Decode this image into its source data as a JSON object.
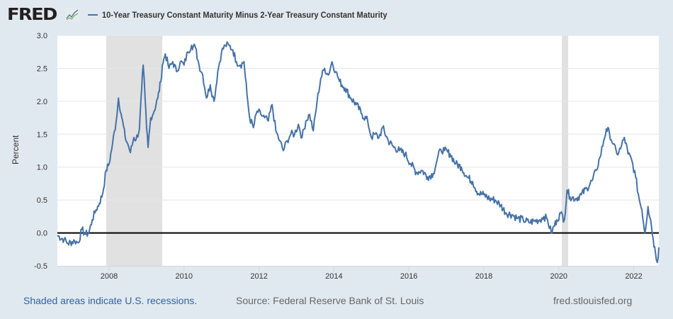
{
  "header": {
    "logo": "FRED",
    "logo_icon": "line-chart-icon",
    "series_title": "10-Year Treasury Constant Maturity Minus 2-Year Treasury Constant Maturity"
  },
  "footer": {
    "recession_note": "Shaded areas indicate U.S. recessions.",
    "source": "Source: Federal Reserve Bank of St. Louis",
    "site": "fred.stlouisfed.org"
  },
  "colors": {
    "background": "#e1e9f0",
    "plot_bg": "#ffffff",
    "series": "#4572a7",
    "recession": "#e1e1e1",
    "zero_line": "#000000",
    "grid": "#e6e6e6"
  },
  "chart_data": {
    "type": "line",
    "title": "10-Year Treasury Constant Maturity Minus 2-Year Treasury Constant Maturity",
    "xlabel": "",
    "ylabel": "Percent",
    "xlim": [
      2006.62,
      2022.67
    ],
    "ylim": [
      -0.5,
      3.0
    ],
    "x_ticks": [
      2008,
      2010,
      2012,
      2014,
      2016,
      2018,
      2020,
      2022
    ],
    "x_tick_labels": [
      "2008",
      "2010",
      "2012",
      "2014",
      "2016",
      "2018",
      "2020",
      "2022"
    ],
    "y_ticks": [
      -0.5,
      0.0,
      0.5,
      1.0,
      1.5,
      2.0,
      2.5,
      3.0
    ],
    "y_tick_labels": [
      "-0.5",
      "0.0",
      "0.5",
      "1.0",
      "1.5",
      "2.0",
      "2.5",
      "3.0"
    ],
    "grid": true,
    "legend": "top-left",
    "reference_line": 0.0,
    "recessions": [
      {
        "start": 2007.92,
        "end": 2009.42
      },
      {
        "start": 2020.08,
        "end": 2020.25
      }
    ],
    "series": [
      {
        "name": "10-Year Treasury Constant Maturity Minus 2-Year Treasury Constant Maturity",
        "x": [
          2006.62,
          2006.8,
          2006.9,
          2007.08,
          2007.18,
          2007.27,
          2007.37,
          2007.46,
          2007.55,
          2007.65,
          2007.74,
          2007.83,
          2007.92,
          2008.0,
          2008.09,
          2008.19,
          2008.25,
          2008.34,
          2008.43,
          2008.5,
          2008.57,
          2008.66,
          2008.72,
          2008.81,
          2008.87,
          2008.91,
          2008.96,
          2009.0,
          2009.04,
          2009.11,
          2009.2,
          2009.3,
          2009.38,
          2009.42,
          2009.5,
          2009.6,
          2009.7,
          2009.8,
          2009.9,
          2010.0,
          2010.1,
          2010.2,
          2010.3,
          2010.4,
          2010.5,
          2010.6,
          2010.7,
          2010.8,
          2010.9,
          2011.0,
          2011.1,
          2011.2,
          2011.3,
          2011.4,
          2011.5,
          2011.6,
          2011.68,
          2011.75,
          2011.85,
          2011.95,
          2012.05,
          2012.15,
          2012.25,
          2012.35,
          2012.45,
          2012.55,
          2012.65,
          2012.75,
          2012.85,
          2012.95,
          2013.05,
          2013.15,
          2013.25,
          2013.35,
          2013.45,
          2013.55,
          2013.65,
          2013.75,
          2013.85,
          2013.95,
          2014.05,
          2014.15,
          2014.3,
          2014.45,
          2014.6,
          2014.75,
          2014.9,
          2015.0,
          2015.1,
          2015.2,
          2015.3,
          2015.45,
          2015.6,
          2015.75,
          2015.9,
          2016.05,
          2016.2,
          2016.35,
          2016.5,
          2016.65,
          2016.75,
          2016.85,
          2016.95,
          2017.1,
          2017.25,
          2017.4,
          2017.55,
          2017.7,
          2017.85,
          2018.0,
          2018.15,
          2018.3,
          2018.45,
          2018.6,
          2018.75,
          2018.9,
          2019.05,
          2019.2,
          2019.35,
          2019.5,
          2019.6,
          2019.7,
          2019.8,
          2019.95,
          2020.05,
          2020.15,
          2020.22,
          2020.3,
          2020.45,
          2020.6,
          2020.75,
          2020.9,
          2021.0,
          2021.1,
          2021.2,
          2021.27,
          2021.35,
          2021.45,
          2021.55,
          2021.65,
          2021.75,
          2021.85,
          2021.95,
          2022.05,
          2022.15,
          2022.22,
          2022.3,
          2022.38,
          2022.45,
          2022.52,
          2022.58,
          2022.63,
          2022.67
        ],
        "y": [
          -0.04,
          -0.1,
          -0.16,
          -0.12,
          -0.15,
          0.05,
          -0.02,
          0.0,
          0.2,
          0.35,
          0.45,
          0.6,
          0.95,
          1.05,
          1.35,
          1.7,
          2.05,
          1.75,
          1.45,
          1.35,
          1.22,
          1.45,
          1.42,
          1.58,
          2.2,
          2.55,
          2.05,
          1.6,
          1.3,
          1.75,
          1.85,
          2.05,
          2.3,
          2.55,
          2.72,
          2.5,
          2.6,
          2.45,
          2.6,
          2.55,
          2.75,
          2.85,
          2.82,
          2.55,
          2.4,
          2.05,
          2.25,
          2.0,
          2.45,
          2.75,
          2.85,
          2.85,
          2.78,
          2.6,
          2.55,
          2.6,
          2.1,
          1.75,
          1.6,
          1.85,
          1.8,
          1.75,
          1.7,
          1.95,
          1.55,
          1.4,
          1.25,
          1.4,
          1.5,
          1.5,
          1.65,
          1.45,
          1.7,
          1.8,
          1.55,
          2.0,
          2.35,
          2.5,
          2.4,
          2.6,
          2.45,
          2.3,
          2.2,
          2.05,
          1.95,
          1.8,
          1.7,
          1.45,
          1.5,
          1.45,
          1.6,
          1.4,
          1.3,
          1.25,
          1.2,
          1.05,
          0.92,
          0.95,
          0.85,
          0.9,
          1.1,
          1.27,
          1.25,
          1.2,
          1.05,
          1.0,
          0.85,
          0.78,
          0.6,
          0.58,
          0.52,
          0.5,
          0.42,
          0.3,
          0.28,
          0.22,
          0.2,
          0.16,
          0.18,
          0.2,
          0.25,
          0.2,
          0.0,
          0.2,
          0.3,
          0.2,
          0.65,
          0.55,
          0.52,
          0.58,
          0.68,
          0.8,
          0.95,
          1.15,
          1.4,
          1.58,
          1.52,
          1.35,
          1.2,
          1.28,
          1.45,
          1.2,
          1.1,
          0.85,
          0.5,
          0.35,
          0.0,
          0.4,
          0.2,
          -0.1,
          -0.3,
          -0.45,
          -0.22
        ]
      }
    ]
  }
}
